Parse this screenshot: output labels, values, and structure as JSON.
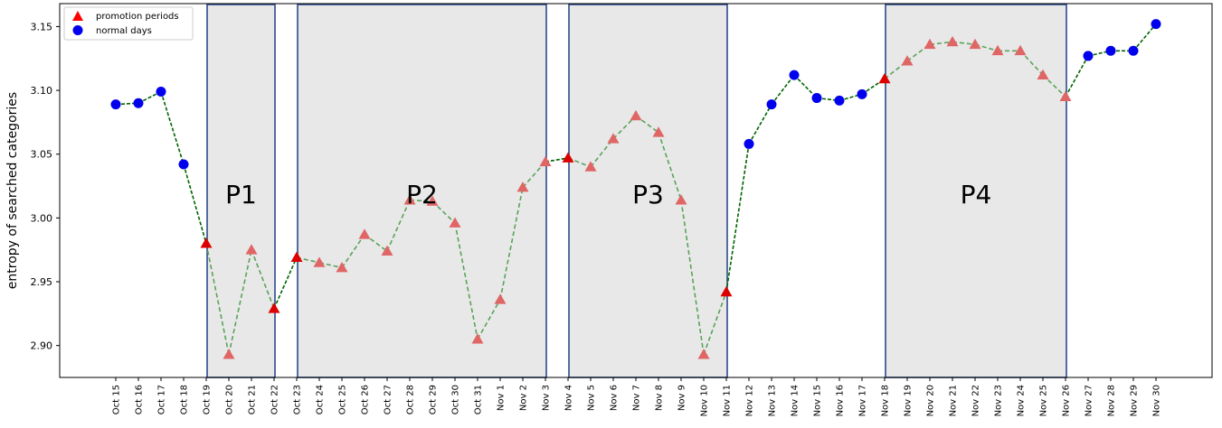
{
  "chart_data": {
    "type": "line",
    "ylabel": "entropy of searched categories",
    "ylim": [
      2.875,
      3.168
    ],
    "yticks": [
      2.9,
      2.95,
      3.0,
      3.05,
      3.1,
      3.15
    ],
    "ytick_labels": [
      "2.90",
      "2.95",
      "3.00",
      "3.05",
      "3.10",
      "3.15"
    ],
    "grid": false,
    "legend_position": "top-left",
    "legend": [
      {
        "label": "promotion periods",
        "marker": "triangle",
        "color": "#ff0000"
      },
      {
        "label": "normal days",
        "marker": "circle",
        "color": "#0000ff"
      }
    ],
    "colors": {
      "promotion_marker": "#e06666",
      "boundary_marker": "#dd0000",
      "normal_marker": "#0000ee",
      "outside_line": "#006400",
      "inside_line": "#5aa35a",
      "period_fill": "#e8e8e8",
      "period_edge": "#2c4a8c"
    },
    "categories": [
      "Oct 15",
      "Oct 16",
      "Oct 17",
      "Oct 18",
      "Oct 19",
      "Oct 20",
      "Oct 21",
      "Oct 22",
      "Oct 23",
      "Oct 24",
      "Oct 25",
      "Oct 26",
      "Oct 27",
      "Oct 28",
      "Oct 29",
      "Oct 30",
      "Oct 31",
      "Nov 1",
      "Nov 2",
      "Nov 3",
      "Nov 4",
      "Nov 5",
      "Nov 6",
      "Nov 7",
      "Nov 8",
      "Nov 9",
      "Nov 10",
      "Nov 11",
      "Nov 12",
      "Nov 13",
      "Nov 14",
      "Nov 15",
      "Nov 16",
      "Nov 17",
      "Nov 18",
      "Nov 19",
      "Nov 20",
      "Nov 21",
      "Nov 22",
      "Nov 23",
      "Nov 24",
      "Nov 25",
      "Nov 26",
      "Nov 27",
      "Nov 28",
      "Nov 29",
      "Nov 30"
    ],
    "values": [
      3.089,
      3.09,
      3.099,
      3.042,
      2.98,
      2.893,
      2.975,
      2.929,
      2.969,
      2.965,
      2.961,
      2.987,
      2.974,
      3.014,
      3.013,
      2.996,
      2.905,
      2.936,
      3.024,
      3.044,
      3.047,
      3.04,
      3.062,
      3.08,
      3.067,
      3.014,
      2.893,
      2.942,
      3.058,
      3.089,
      3.112,
      3.094,
      3.092,
      3.097,
      3.109,
      3.123,
      3.136,
      3.138,
      3.136,
      3.131,
      3.131,
      3.112,
      3.095,
      3.127,
      3.131,
      3.131,
      3.152
    ],
    "point_types": [
      "normal",
      "normal",
      "normal",
      "normal",
      "boundary",
      "promotion",
      "promotion",
      "boundary",
      "boundary",
      "promotion",
      "promotion",
      "promotion",
      "promotion",
      "promotion",
      "promotion",
      "promotion",
      "promotion",
      "promotion",
      "promotion",
      "promotion",
      "boundary",
      "promotion",
      "promotion",
      "promotion",
      "promotion",
      "promotion",
      "promotion",
      "boundary",
      "normal",
      "normal",
      "normal",
      "normal",
      "normal",
      "normal",
      "boundary",
      "promotion",
      "promotion",
      "promotion",
      "promotion",
      "promotion",
      "promotion",
      "promotion",
      "promotion",
      "normal",
      "normal",
      "normal",
      "normal"
    ],
    "periods": [
      {
        "label": "P1",
        "start": "Oct 19",
        "end": "Oct 22"
      },
      {
        "label": "P2",
        "start": "Oct 23",
        "end": "Nov 3"
      },
      {
        "label": "P3",
        "start": "Nov 4",
        "end": "Nov 11"
      },
      {
        "label": "P4",
        "start": "Nov 18",
        "end": "Nov 26"
      }
    ]
  }
}
